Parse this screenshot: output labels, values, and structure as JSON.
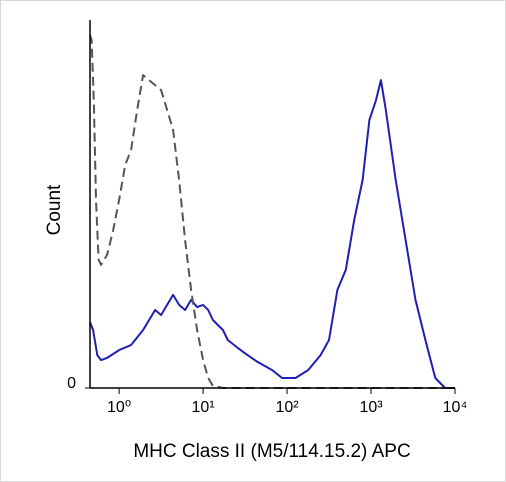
{
  "chart_data": {
    "type": "line",
    "x_label": "MHC Class II (M5/114.15.2) APC",
    "y_label": "Count",
    "x_scale": "log",
    "xlim": [
      0.45,
      10000
    ],
    "xticks": [
      {
        "value": 1,
        "label": "10⁰"
      },
      {
        "value": 10,
        "label": "10¹"
      },
      {
        "value": 100,
        "label": "10²"
      },
      {
        "value": 1000,
        "label": "10³"
      },
      {
        "value": 10000,
        "label": "10⁴"
      }
    ],
    "ylim": [
      0,
      100
    ],
    "yticks": [
      0
    ],
    "series": [
      {
        "color": "#1f1fb4",
        "dashed": false,
        "x": [
          0.45,
          0.49,
          0.55,
          0.61,
          0.72,
          1,
          1.39,
          1.93,
          2.68,
          3.16,
          3.73,
          4.39,
          5.18,
          6.11,
          7.2,
          8.48,
          10,
          11.5,
          13.1,
          15,
          17.2,
          19.7,
          25.8,
          33.8,
          44.4,
          66.6,
          87.3,
          126,
          178,
          251,
          316,
          398,
          501,
          631,
          794,
          955,
          1145,
          1312,
          1500,
          1967,
          2582,
          3381,
          4436,
          5821,
          7621,
          10000
        ],
        "values": [
          18.4,
          16.2,
          9.2,
          7.8,
          8.4,
          10.6,
          12,
          16.2,
          21.8,
          20.4,
          23.2,
          26,
          23.2,
          21.8,
          24.6,
          22.6,
          23.2,
          21.8,
          19,
          17.6,
          16.2,
          13.4,
          11.2,
          9.2,
          7.3,
          5.0,
          2.8,
          2.8,
          5.0,
          9.2,
          13.4,
          27.4,
          33,
          46.9,
          58.1,
          74.9,
          80.4,
          86,
          77.7,
          58.1,
          41.3,
          24.6,
          13.4,
          2.8,
          0,
          0
        ]
      },
      {
        "color": "#555555",
        "dashed": true,
        "x": [
          0.45,
          0.47,
          0.5,
          0.53,
          0.57,
          0.61,
          0.72,
          0.85,
          1,
          1.18,
          1.39,
          1.64,
          1.93,
          2.27,
          2.68,
          3.16,
          3.73,
          4.39,
          5.18,
          6.11,
          7.2,
          8.48,
          10,
          11.5,
          13.1,
          17.2,
          10000
        ],
        "values": [
          98.6,
          97.2,
          80.4,
          52.5,
          35.8,
          34.4,
          37.2,
          44.1,
          52.5,
          62.3,
          66.5,
          77.7,
          87.4,
          86,
          84.6,
          83.2,
          77.7,
          72.1,
          58.1,
          41.3,
          27.4,
          16.2,
          7.8,
          2.8,
          0.6,
          0,
          0
        ]
      }
    ]
  }
}
